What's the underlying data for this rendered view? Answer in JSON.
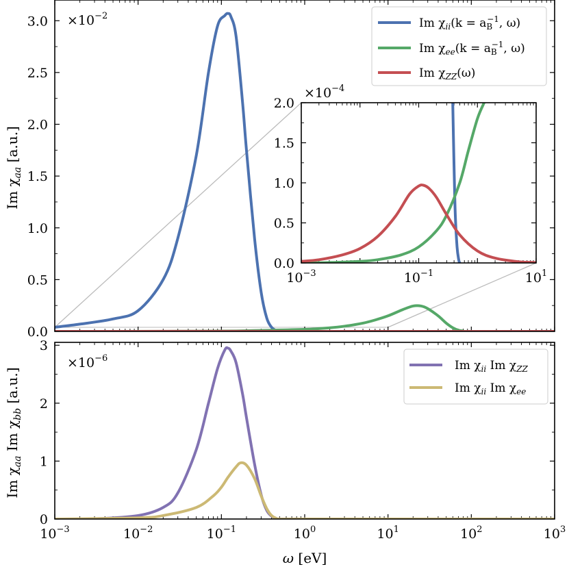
{
  "chart_data": [
    {
      "id": "top",
      "type": "line",
      "xscale": "log",
      "xlim": [
        0.001,
        1000
      ],
      "ylim": [
        0,
        3.2
      ],
      "ylabel": "Im χ_aa [a.u.]",
      "y_multiplier": "×10^-2",
      "y_ticks": [
        0.0,
        0.5,
        1.0,
        1.5,
        2.0,
        2.5,
        3.0
      ],
      "y_tick_labels": [
        "0.0",
        "0.5",
        "1.0",
        "1.5",
        "2.0",
        "2.5",
        "3.0"
      ],
      "legend_position": "top-right",
      "series": [
        {
          "name": "Im χ_ii(k = a_B^-1, ω)",
          "color": "#4C72B0",
          "x": [
            0.001,
            0.002,
            0.005,
            0.01,
            0.02,
            0.03,
            0.05,
            0.07,
            0.09,
            0.11,
            0.12,
            0.13,
            0.15,
            0.18,
            0.2,
            0.25,
            0.3,
            0.35,
            0.4,
            0.45,
            0.5,
            1,
            10,
            1000
          ],
          "y": [
            0.04,
            0.07,
            0.12,
            0.2,
            0.5,
            0.9,
            1.7,
            2.5,
            2.95,
            3.05,
            3.07,
            3.04,
            2.85,
            2.2,
            1.75,
            0.9,
            0.38,
            0.13,
            0.04,
            0.01,
            0.0,
            0.0,
            0.0,
            0.0
          ]
        },
        {
          "name": "Im χ_ee(k = a_B^-1, ω)",
          "color": "#55A868",
          "x": [
            0.001,
            0.01,
            0.1,
            0.3,
            1,
            2,
            3,
            5,
            7,
            10,
            15,
            20,
            25,
            30,
            40,
            50,
            60,
            70,
            80,
            100,
            1000
          ],
          "y": [
            0.0,
            0.0005,
            0.003,
            0.01,
            0.02,
            0.035,
            0.05,
            0.08,
            0.11,
            0.15,
            0.21,
            0.245,
            0.245,
            0.22,
            0.15,
            0.08,
            0.035,
            0.012,
            0.004,
            0.0,
            0.0
          ]
        },
        {
          "name": "Im χ_ZZ(ω)",
          "color": "#C44E52",
          "x": [
            0.001,
            0.01,
            0.03,
            0.1,
            0.3,
            1,
            10,
            100,
            1000
          ],
          "y": [
            0.0,
            0.0003,
            0.0007,
            0.001,
            0.0006,
            0.0001,
            0.0,
            0.0,
            0.0
          ]
        }
      ]
    },
    {
      "id": "inset",
      "type": "line",
      "xscale": "log",
      "xlim": [
        0.001,
        10
      ],
      "ylim": [
        0,
        2.0
      ],
      "y_multiplier": "×10^-4",
      "y_ticks": [
        0.0,
        0.5,
        1.0,
        1.5,
        2.0
      ],
      "y_tick_labels": [
        "0.0",
        "0.5",
        "1.0",
        "1.5",
        "2.0"
      ],
      "series": [
        {
          "name": "Im χ_ii",
          "color": "#4C72B0",
          "x": [
            0.38,
            0.4,
            0.42,
            0.45,
            0.48,
            0.5
          ],
          "y": [
            2.0,
            1.2,
            0.6,
            0.2,
            0.04,
            0.0
          ]
        },
        {
          "name": "Im χ_ee",
          "color": "#55A868",
          "x": [
            0.001,
            0.003,
            0.01,
            0.02,
            0.05,
            0.1,
            0.2,
            0.3,
            0.5,
            0.7,
            1.0,
            1.3
          ],
          "y": [
            0.0,
            0.005,
            0.02,
            0.04,
            0.1,
            0.2,
            0.4,
            0.6,
            1.0,
            1.4,
            1.8,
            2.0
          ]
        },
        {
          "name": "Im χ_ZZ",
          "color": "#C44E52",
          "x": [
            0.001,
            0.002,
            0.005,
            0.01,
            0.02,
            0.04,
            0.07,
            0.1,
            0.12,
            0.15,
            0.2,
            0.3,
            0.5,
            1,
            2,
            5,
            10
          ],
          "y": [
            0.02,
            0.04,
            0.1,
            0.18,
            0.33,
            0.58,
            0.86,
            0.96,
            0.97,
            0.93,
            0.82,
            0.6,
            0.35,
            0.15,
            0.06,
            0.015,
            0.005
          ]
        }
      ]
    },
    {
      "id": "bottom",
      "type": "line",
      "xscale": "log",
      "xlim": [
        0.001,
        1000
      ],
      "ylim": [
        0,
        3.05
      ],
      "xlabel": "ω [eV]",
      "ylabel": "Im χ_aa Im χ_bb [a.u.]",
      "y_multiplier": "×10^-6",
      "y_ticks": [
        0,
        1,
        2,
        3
      ],
      "y_tick_labels": [
        "0",
        "1",
        "2",
        "3"
      ],
      "x_ticks": [
        0.001,
        0.01,
        0.1,
        1,
        10,
        100,
        1000
      ],
      "x_tick_labels": [
        {
          "base": "10",
          "exp": "−3"
        },
        {
          "base": "10",
          "exp": "−2"
        },
        {
          "base": "10",
          "exp": "−1"
        },
        {
          "base": "10",
          "exp": "0"
        },
        {
          "base": "10",
          "exp": "1"
        },
        {
          "base": "10",
          "exp": "2"
        },
        {
          "base": "10",
          "exp": "3"
        }
      ],
      "legend_position": "top-right",
      "series": [
        {
          "name": "Im χ_ii Im χ_ZZ",
          "color": "#8172B2",
          "x": [
            0.001,
            0.003,
            0.01,
            0.02,
            0.03,
            0.05,
            0.07,
            0.09,
            0.11,
            0.12,
            0.13,
            0.15,
            0.18,
            0.2,
            0.25,
            0.3,
            0.35,
            0.4,
            0.45,
            0.5,
            1,
            1000
          ],
          "y": [
            0.0,
            0.005,
            0.06,
            0.2,
            0.45,
            1.2,
            2.0,
            2.6,
            2.92,
            2.95,
            2.9,
            2.7,
            2.15,
            1.75,
            0.95,
            0.42,
            0.15,
            0.05,
            0.015,
            0.0,
            0.0,
            0.0
          ]
        },
        {
          "name": "Im χ_ii Im χ_ee",
          "color": "#CCB974",
          "x": [
            0.001,
            0.01,
            0.02,
            0.05,
            0.08,
            0.1,
            0.12,
            0.15,
            0.17,
            0.2,
            0.25,
            0.3,
            0.35,
            0.4,
            0.45,
            0.5,
            1,
            1000
          ],
          "y": [
            0.0,
            0.02,
            0.06,
            0.2,
            0.4,
            0.55,
            0.72,
            0.9,
            0.97,
            0.93,
            0.7,
            0.4,
            0.18,
            0.06,
            0.015,
            0.0,
            0.0,
            0.0
          ]
        }
      ]
    }
  ],
  "legend_top": [
    {
      "prefix": "Im χ",
      "sub": "ii",
      "suffix": "(k = a",
      "sub2": "B",
      "sup2": "−1",
      "tail": ", ω)"
    },
    {
      "prefix": "Im χ",
      "sub": "ee",
      "suffix": "(k = a",
      "sub2": "B",
      "sup2": "−1",
      "tail": ", ω)"
    },
    {
      "prefix": "Im χ",
      "sub": "ZZ",
      "suffix": "(ω)",
      "sub2": "",
      "sup2": "",
      "tail": ""
    }
  ],
  "legend_bottom": [
    {
      "a": "Im χ",
      "asub": "ii",
      "b": " Im χ",
      "bsub": "ZZ"
    },
    {
      "a": "Im χ",
      "asub": "ii",
      "b": " Im χ",
      "bsub": "ee"
    }
  ],
  "labels": {
    "top_ylabel_main": "Im χ",
    "top_ylabel_sub": "aa",
    "top_ylabel_unit": " [a.u.]",
    "bottom_ylabel_a": "Im χ",
    "bottom_ylabel_asub": "aa",
    "bottom_ylabel_b": " Im χ",
    "bottom_ylabel_bsub": "bb",
    "bottom_ylabel_unit": " [a.u.]",
    "xlabel_sym": "ω",
    "xlabel_unit": " [eV]",
    "mult_top_base": "×10",
    "mult_top_exp": "−2",
    "mult_inset_base": "×10",
    "mult_inset_exp": "−4",
    "mult_bottom_base": "×10",
    "mult_bottom_exp": "−6"
  },
  "inset_x_tick_labels": [
    {
      "base": "10",
      "exp": "−3"
    },
    {
      "base": "10",
      "exp": "−1"
    },
    {
      "base": "10",
      "exp": "1"
    }
  ]
}
